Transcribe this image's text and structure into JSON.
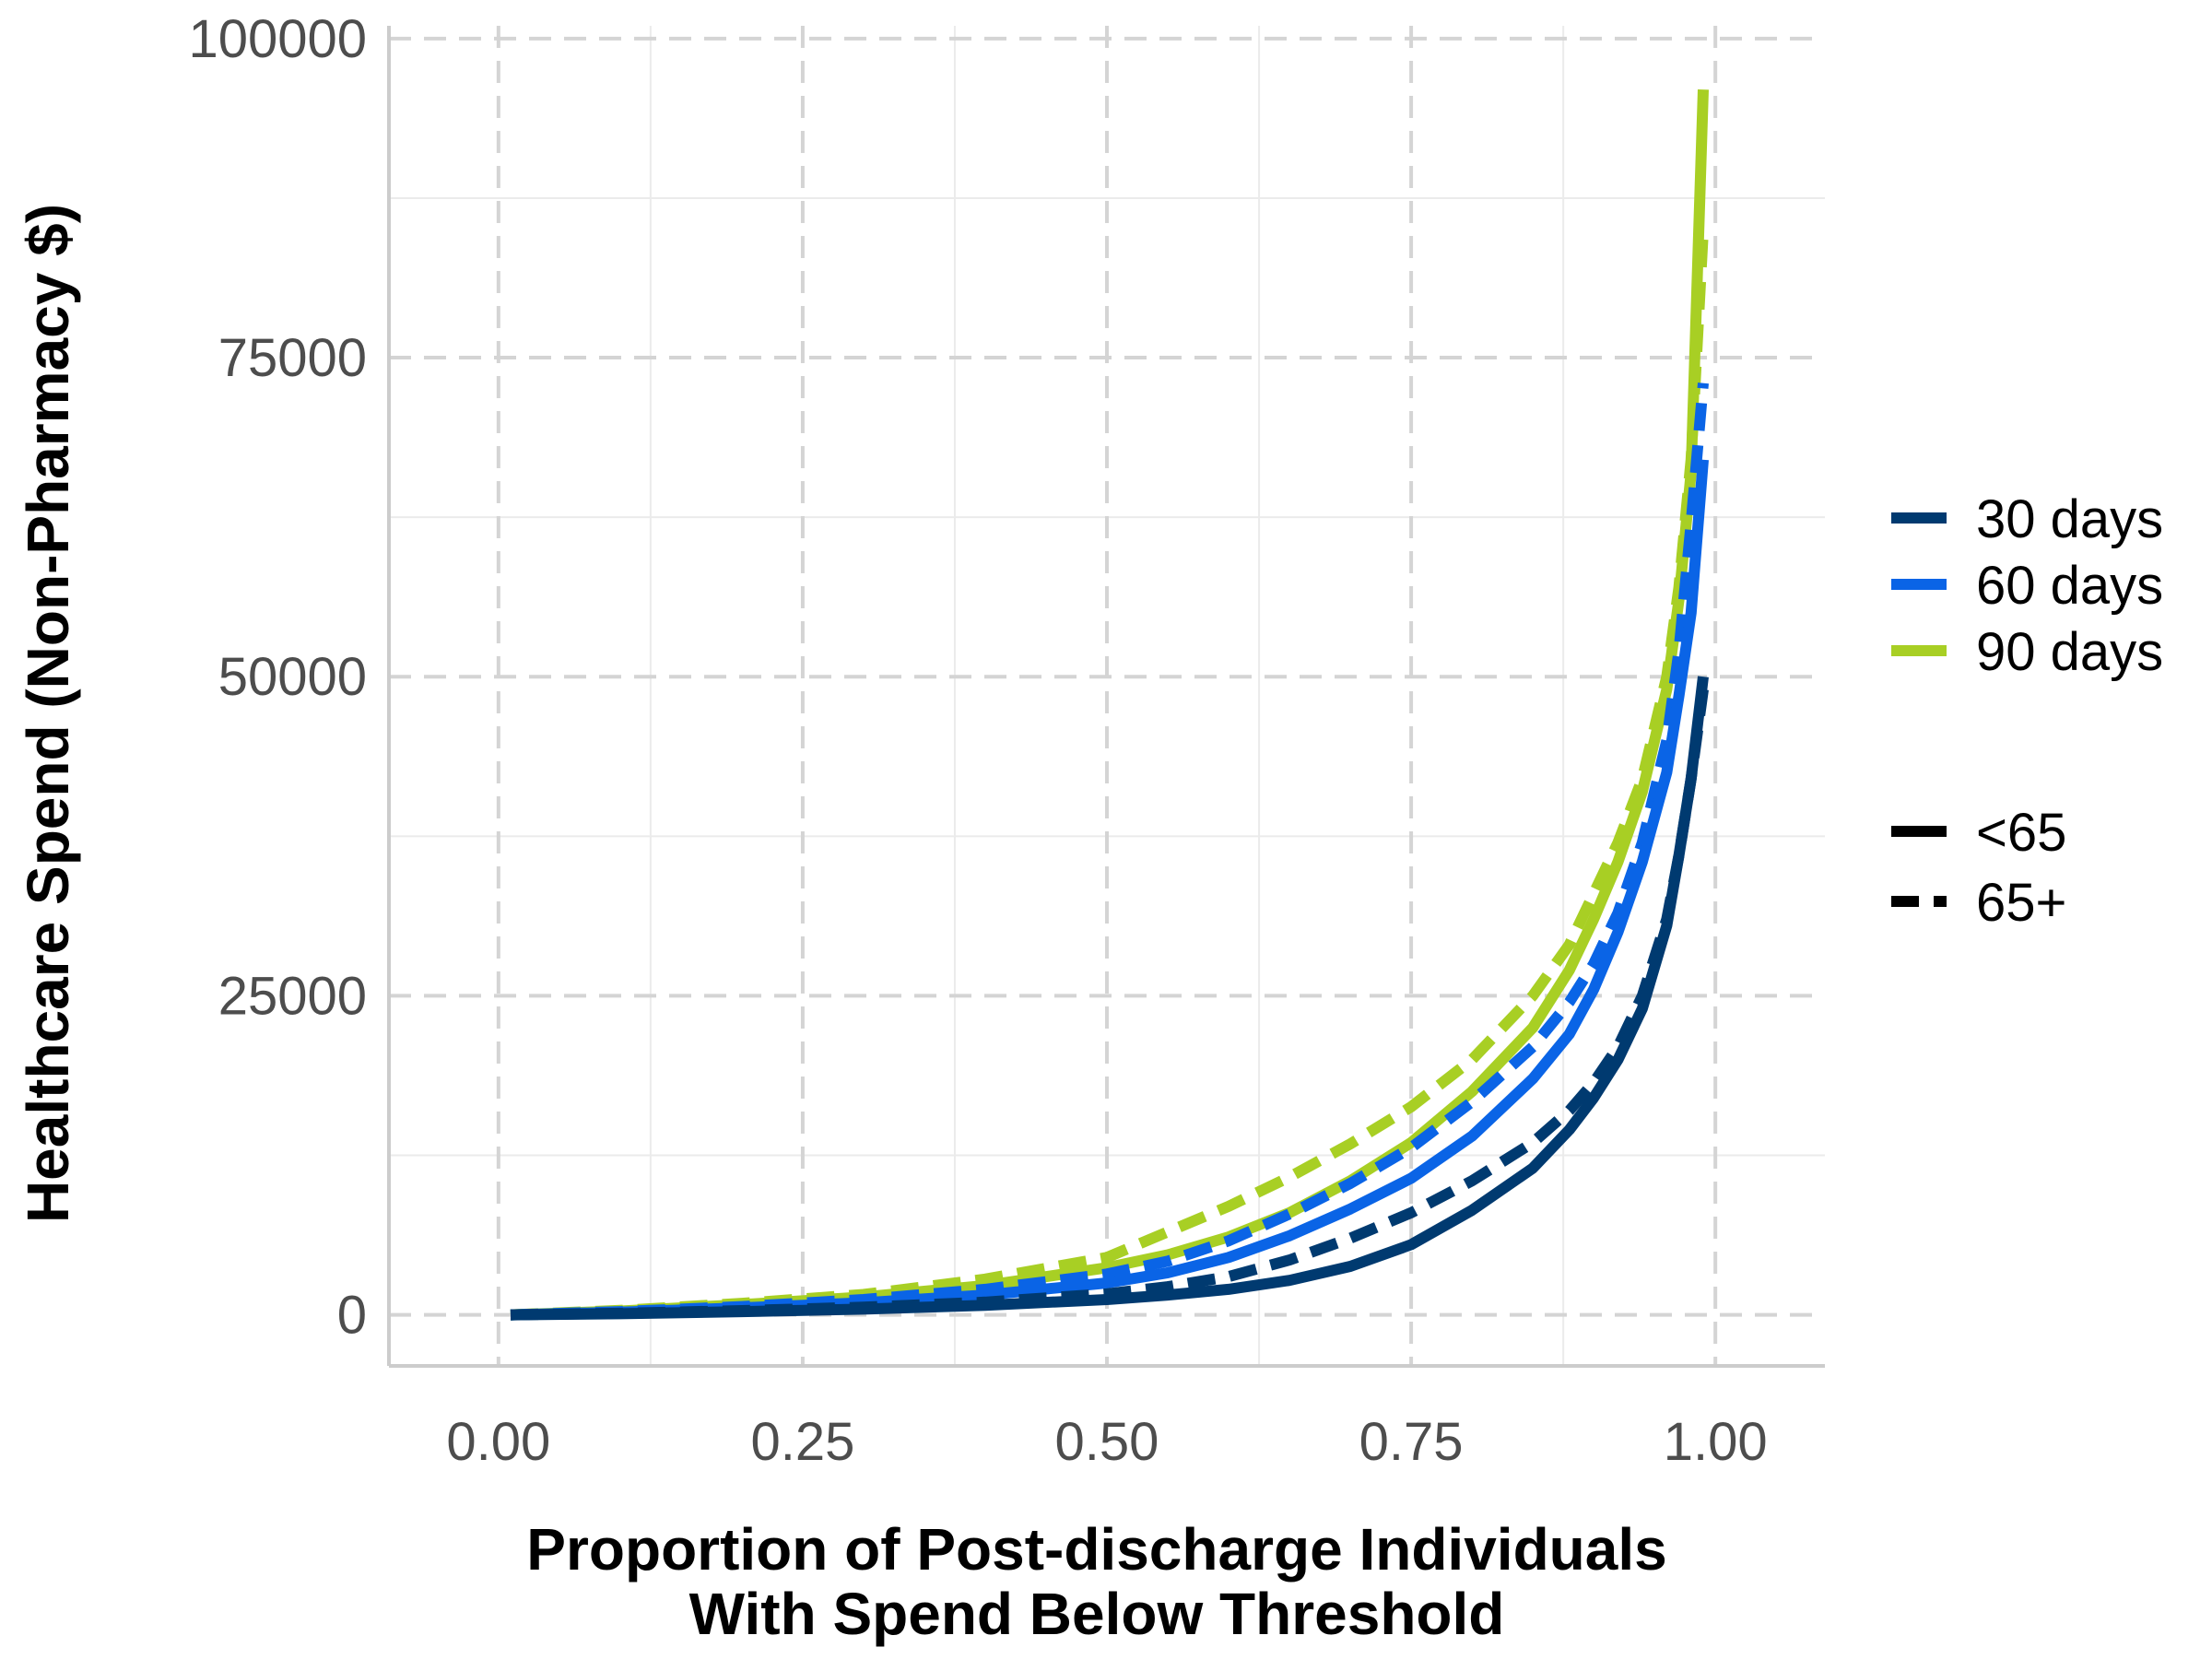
{
  "chart_data": {
    "type": "line",
    "title": "",
    "xlabel_lines": [
      "Proportion of Post-discharge Individuals",
      "With Spend Below Threshold"
    ],
    "ylabel": "Healthcare Spend (Non-Pharmacy $)",
    "xlim": [
      -0.09,
      1.09
    ],
    "ylim": [
      -4000,
      101000
    ],
    "x_ticks": [
      0,
      0.25,
      0.5,
      0.75,
      1
    ],
    "x_tick_labels": [
      "0.00",
      "0.25",
      "0.50",
      "0.75",
      "1.00"
    ],
    "y_ticks": [
      0,
      25000,
      50000,
      75000,
      100000
    ],
    "y_tick_labels": [
      "0",
      "25000",
      "50000",
      "75000",
      "100000"
    ],
    "grid": true,
    "legend_position": "right",
    "color_legend": [
      {
        "label": "30 days",
        "color": "#003a70"
      },
      {
        "label": "60 days",
        "color": "#0a64e6"
      },
      {
        "label": "90 days",
        "color": "#a8cf24"
      }
    ],
    "linetype_legend": [
      {
        "label": "<65",
        "dash": "solid"
      },
      {
        "label": "65+",
        "dash": "dashed"
      }
    ],
    "series": [
      {
        "days": "90 days",
        "age": "65+",
        "color": "#a8cf24",
        "dash": "dashed",
        "x": [
          0.01,
          0.1,
          0.2,
          0.3,
          0.4,
          0.5,
          0.55,
          0.6,
          0.65,
          0.7,
          0.75,
          0.8,
          0.85,
          0.88,
          0.9,
          0.92,
          0.94,
          0.96,
          0.97,
          0.98,
          0.99
        ],
        "y": [
          0,
          350,
          900,
          1600,
          2800,
          4500,
          6500,
          8500,
          10800,
          13400,
          16300,
          20000,
          25000,
          29000,
          33000,
          37000,
          42000,
          50000,
          57000,
          67000,
          85000
        ]
      },
      {
        "days": "90 days",
        "age": "<65",
        "color": "#a8cf24",
        "dash": "solid",
        "x": [
          0.01,
          0.1,
          0.2,
          0.3,
          0.4,
          0.5,
          0.55,
          0.6,
          0.65,
          0.7,
          0.75,
          0.8,
          0.85,
          0.88,
          0.9,
          0.92,
          0.94,
          0.96,
          0.97,
          0.98,
          0.99
        ],
        "y": [
          0,
          300,
          800,
          1400,
          2300,
          3700,
          4700,
          6100,
          8000,
          10500,
          13500,
          17500,
          22500,
          27000,
          31000,
          35500,
          41000,
          49000,
          56000,
          66000,
          96000
        ]
      },
      {
        "days": "60 days",
        "age": "65+",
        "color": "#0a64e6",
        "dash": "dashed",
        "x": [
          0.01,
          0.1,
          0.2,
          0.3,
          0.4,
          0.5,
          0.55,
          0.6,
          0.65,
          0.7,
          0.75,
          0.8,
          0.85,
          0.88,
          0.9,
          0.92,
          0.94,
          0.96,
          0.97,
          0.98,
          0.99
        ],
        "y": [
          0,
          250,
          650,
          1200,
          2000,
          3200,
          4200,
          5800,
          7900,
          10300,
          13100,
          16700,
          21000,
          24500,
          27500,
          31500,
          37000,
          45000,
          52000,
          62000,
          73000
        ]
      },
      {
        "days": "60 days",
        "age": "<65",
        "color": "#0a64e6",
        "dash": "solid",
        "x": [
          0.01,
          0.1,
          0.2,
          0.3,
          0.4,
          0.5,
          0.55,
          0.6,
          0.65,
          0.7,
          0.75,
          0.8,
          0.85,
          0.88,
          0.9,
          0.92,
          0.94,
          0.96,
          0.97,
          0.98,
          0.99
        ],
        "y": [
          0,
          200,
          550,
          950,
          1550,
          2500,
          3300,
          4500,
          6200,
          8300,
          10700,
          14000,
          18500,
          22000,
          25500,
          30000,
          35500,
          42500,
          48500,
          55000,
          67000
        ]
      },
      {
        "days": "30 days",
        "age": "65+",
        "color": "#003a70",
        "dash": "dashed",
        "x": [
          0.01,
          0.1,
          0.2,
          0.3,
          0.4,
          0.5,
          0.55,
          0.6,
          0.65,
          0.7,
          0.75,
          0.8,
          0.85,
          0.88,
          0.9,
          0.92,
          0.94,
          0.96,
          0.97,
          0.98,
          0.99
        ],
        "y": [
          0,
          120,
          330,
          600,
          1000,
          1650,
          2200,
          3000,
          4300,
          6000,
          8000,
          10500,
          13500,
          16000,
          18200,
          21000,
          25000,
          31000,
          36000,
          42000,
          49000
        ]
      },
      {
        "days": "30 days",
        "age": "<65",
        "color": "#003a70",
        "dash": "solid",
        "x": [
          0.01,
          0.1,
          0.2,
          0.3,
          0.4,
          0.5,
          0.55,
          0.6,
          0.65,
          0.7,
          0.75,
          0.8,
          0.85,
          0.88,
          0.9,
          0.92,
          0.94,
          0.96,
          0.97,
          0.98,
          0.99
        ],
        "y": [
          0,
          90,
          250,
          450,
          750,
          1200,
          1550,
          2000,
          2700,
          3800,
          5500,
          8200,
          11500,
          14500,
          17000,
          20000,
          24000,
          30500,
          36000,
          42000,
          50000
        ]
      }
    ]
  }
}
